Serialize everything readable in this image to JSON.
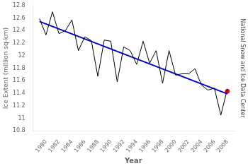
{
  "chart_data": {
    "type": "line",
    "xlabel": "Year",
    "ylabel": "Ice Extent (million sq-km)",
    "annotations": [
      "National Snow and Ice Data Center"
    ],
    "series": [
      {
        "type": "line",
        "color": "#000000",
        "x": [
          1979,
          1980,
          1981,
          1982,
          1983,
          1984,
          1985,
          1986,
          1987,
          1988,
          1989,
          1990,
          1991,
          1992,
          1993,
          1994,
          1995,
          1996,
          1997,
          1998,
          1999,
          2000,
          2001,
          2002,
          2003,
          2004,
          2005,
          2006,
          2007,
          2008
        ],
        "values": [
          12.59,
          12.33,
          12.7,
          12.35,
          12.4,
          12.57,
          12.08,
          12.3,
          12.24,
          11.67,
          12.25,
          12.23,
          11.58,
          12.14,
          12.08,
          11.86,
          12.23,
          11.88,
          12.08,
          11.56,
          12.08,
          11.69,
          11.71,
          11.71,
          11.79,
          11.53,
          11.45,
          11.48,
          11.05,
          11.47
        ]
      },
      {
        "type": "line",
        "color": "#0000cc",
        "x": [
          1979,
          2008
        ],
        "values": [
          12.545,
          11.39
        ]
      },
      {
        "type": "scatter",
        "marker": "circle",
        "color": "#ff0000",
        "x": [
          2008.0
        ],
        "values": [
          11.43
        ]
      }
    ],
    "xlim": [
      1978,
      2009
    ],
    "xticks": [
      1980,
      1982,
      1984,
      1986,
      1988,
      1990,
      1992,
      1994,
      1996,
      1998,
      2000,
      2002,
      2004,
      2006,
      2008
    ],
    "ylim": [
      10.8,
      12.8
    ],
    "yticks": [
      10.8,
      11,
      11.2,
      11.4,
      11.6,
      11.8,
      12,
      12.2,
      12.4,
      12.6,
      12.8
    ],
    "grid": false
  }
}
